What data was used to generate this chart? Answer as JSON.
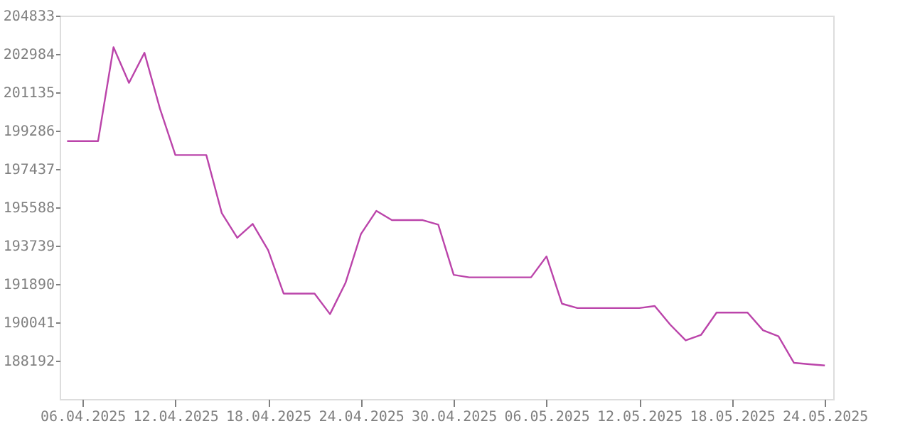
{
  "chart_data": {
    "type": "line",
    "x": [
      "2025-04-05",
      "2025-04-06",
      "2025-04-07",
      "2025-04-08",
      "2025-04-09",
      "2025-04-10",
      "2025-04-11",
      "2025-04-12",
      "2025-04-13",
      "2025-04-14",
      "2025-04-15",
      "2025-04-16",
      "2025-04-17",
      "2025-04-18",
      "2025-04-19",
      "2025-04-20",
      "2025-04-21",
      "2025-04-22",
      "2025-04-23",
      "2025-04-24",
      "2025-04-25",
      "2025-04-26",
      "2025-04-27",
      "2025-04-28",
      "2025-04-29",
      "2025-04-30",
      "2025-05-01",
      "2025-05-02",
      "2025-05-03",
      "2025-05-04",
      "2025-05-05",
      "2025-05-06",
      "2025-05-07",
      "2025-05-08",
      "2025-05-09",
      "2025-05-10",
      "2025-05-11",
      "2025-05-12",
      "2025-05-13",
      "2025-05-14",
      "2025-05-15",
      "2025-05-16",
      "2025-05-17",
      "2025-05-18",
      "2025-05-19",
      "2025-05-20",
      "2025-05-21",
      "2025-05-22",
      "2025-05-23",
      "2025-05-24"
    ],
    "series": [
      {
        "color": "#bb44aa",
        "values": [
          198780,
          198780,
          198780,
          203310,
          201590,
          203040,
          200350,
          198110,
          198110,
          198110,
          195310,
          194120,
          194790,
          193520,
          191430,
          191430,
          191430,
          190440,
          191940,
          194300,
          195420,
          194970,
          194970,
          194970,
          194750,
          192330,
          192210,
          192210,
          192210,
          192210,
          192210,
          193220,
          190940,
          190730,
          190730,
          190730,
          190730,
          190730,
          190830,
          189930,
          189170,
          189440,
          190510,
          190510,
          190510,
          189660,
          189370,
          188090,
          188020,
          187960
        ]
      }
    ],
    "xlim": [
      "2025-04-04T12:30",
      "2025-05-24T13:00"
    ],
    "xticks": [
      {
        "value": "2025-04-06",
        "label": "06.04.2025"
      },
      {
        "value": "2025-04-12",
        "label": "12.04.2025"
      },
      {
        "value": "2025-04-18",
        "label": "18.04.2025"
      },
      {
        "value": "2025-04-24",
        "label": "24.04.2025"
      },
      {
        "value": "2025-04-30",
        "label": "30.04.2025"
      },
      {
        "value": "2025-05-06",
        "label": "06.05.2025"
      },
      {
        "value": "2025-05-12",
        "label": "12.05.2025"
      },
      {
        "value": "2025-05-18",
        "label": "18.05.2025"
      },
      {
        "value": "2025-05-24",
        "label": "24.05.2025"
      }
    ],
    "ylim": [
      186343,
      204833
    ],
    "yticks": [
      188192,
      190041,
      191890,
      193739,
      195588,
      197437,
      199286,
      201135,
      202984,
      204833
    ],
    "grid": false
  }
}
